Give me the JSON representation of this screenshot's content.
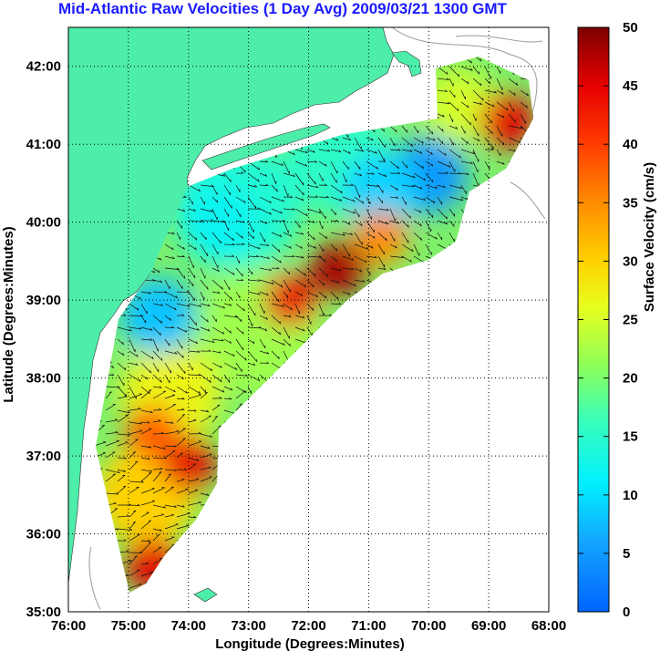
{
  "title": "Mid-Atlantic Raw Velocities (1 Day Avg) 2009/03/21 1300 GMT",
  "xaxis": {
    "label": "Longitude (Degrees:Minutes)",
    "ticks": [
      "76:00",
      "75:00",
      "74:00",
      "73:00",
      "72:00",
      "71:00",
      "70:00",
      "69:00",
      "68:00"
    ]
  },
  "yaxis": {
    "label": "Latitude (Degrees:Minutes)",
    "ticks": [
      "42:00",
      "41:00",
      "40:00",
      "39:00",
      "38:00",
      "37:00",
      "36:00",
      "35:00"
    ]
  },
  "colorbar": {
    "label": "Surface Velocity (cm/s)",
    "ticks": [
      "50",
      "45",
      "40",
      "35",
      "30",
      "25",
      "20",
      "15",
      "10",
      "5",
      "0"
    ],
    "range": [
      0,
      50
    ]
  },
  "colors": {
    "land": "#4dedaa",
    "title": "#1a1aff",
    "grid": "#000000"
  },
  "chart_data": {
    "type": "heatmap",
    "title": "Mid-Atlantic Raw Velocities (1 Day Avg) 2009/03/21 1300 GMT",
    "xlabel": "Longitude (Degrees:Minutes)",
    "ylabel": "Latitude (Degrees:Minutes)",
    "xlim": [
      -76,
      -68
    ],
    "ylim": [
      35,
      42.5
    ],
    "colorbar_label": "Surface Velocity (cm/s)",
    "clim": [
      0,
      50
    ],
    "grid": true,
    "hotspots": [
      {
        "lon": -68.7,
        "lat": 41.3,
        "speed": 45
      },
      {
        "lon": -70.8,
        "lat": 39.8,
        "speed": 35
      },
      {
        "lon": -71.5,
        "lat": 39.4,
        "speed": 48
      },
      {
        "lon": -72.3,
        "lat": 39.0,
        "speed": 44
      },
      {
        "lon": -74.6,
        "lat": 37.3,
        "speed": 38
      },
      {
        "lon": -74.0,
        "lat": 36.9,
        "speed": 45
      },
      {
        "lon": -74.6,
        "lat": 35.6,
        "speed": 45
      }
    ],
    "lowspots": [
      {
        "lon": -70.0,
        "lat": 40.6,
        "speed": 5
      },
      {
        "lon": -70.8,
        "lat": 40.4,
        "speed": 9
      },
      {
        "lon": -74.5,
        "lat": 38.8,
        "speed": 8
      },
      {
        "lon": -73.5,
        "lat": 40.0,
        "speed": 12
      }
    ]
  }
}
